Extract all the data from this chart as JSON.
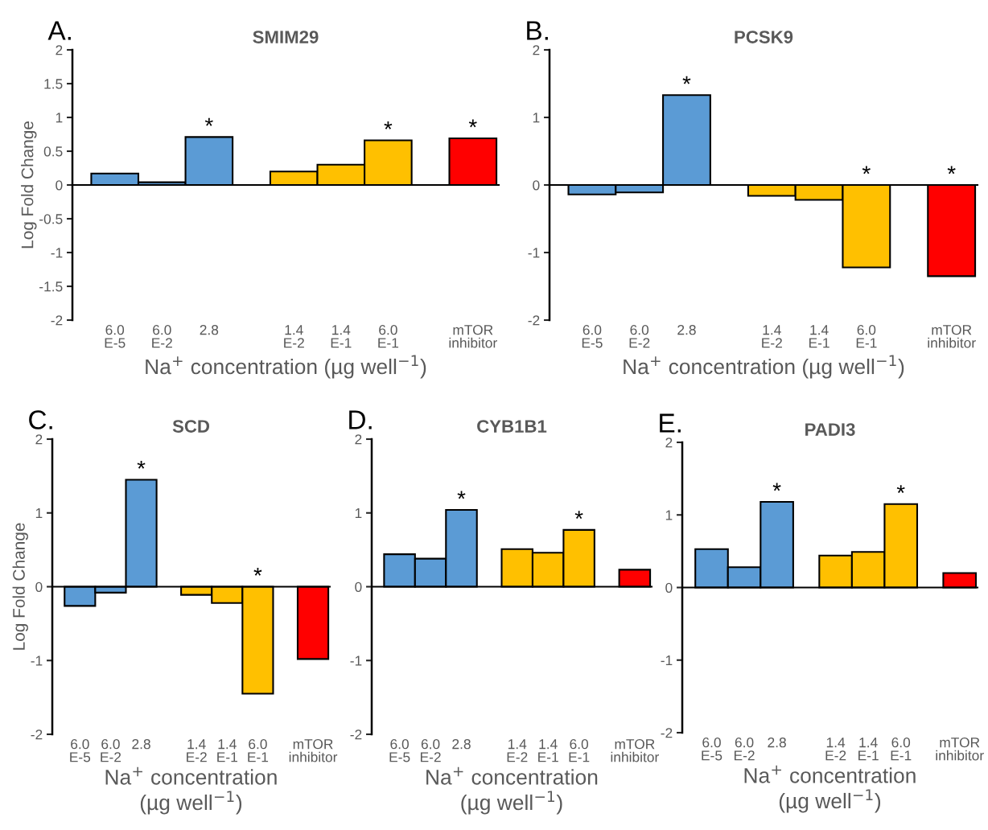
{
  "chart_data": [
    {
      "type": "bar",
      "title": "SMIM29",
      "ylabel": "Log Fold Change",
      "xlabel": "Na$^{+}$ concentration (µg well$^{−1}$)",
      "categories": [
        "6.0\nE-5",
        "6.0\nE-2",
        "2.8",
        "1.4\nE-2",
        "1.4\nE-1",
        "6.0\nE-1",
        "mTOR\ninhibitor"
      ],
      "values": [
        0.17,
        0.04,
        0.71,
        0.2,
        0.3,
        0.66,
        0.69
      ],
      "colors": [
        "#5b9bd5",
        "#5b9bd5",
        "#5b9bd5",
        "#ffc000",
        "#ffc000",
        "#ffc000",
        "#ff0000"
      ],
      "ylim": [
        -2,
        2
      ],
      "yticks": [
        -2,
        -1.5,
        -1,
        -0.5,
        0,
        0.5,
        1,
        1.5,
        2
      ],
      "legend": false,
      "annotations": [
        "A.",
        {
          "text": "*",
          "x": "2.8",
          "y": 0.71
        },
        {
          "text": "*",
          "x": "6.0\nE-1",
          "y": 0.66
        },
        {
          "text": "*",
          "x": "mTOR\ninhibitor",
          "y": 0.69
        }
      ]
    },
    {
      "type": "bar",
      "title": "PCSK9",
      "xlabel": "Na$^{+}$ concentration (µg well$^{−1}$)",
      "categories": [
        "6.0\nE-5",
        "6.0\nE-2",
        "2.8",
        "1.4\nE-2",
        "1.4\nE-1",
        "6.0\nE-1",
        "mTOR\ninhibitor"
      ],
      "values": [
        -0.14,
        -0.11,
        1.33,
        -0.16,
        -0.22,
        -1.22,
        -1.35
      ],
      "colors": [
        "#5b9bd5",
        "#5b9bd5",
        "#5b9bd5",
        "#ffc000",
        "#ffc000",
        "#ffc000",
        "#ff0000"
      ],
      "ylim": [
        -2,
        2
      ],
      "yticks": [
        -2,
        -1,
        0,
        1,
        2
      ],
      "legend": false,
      "annotations": [
        "B.",
        {
          "text": "*",
          "x": "2.8",
          "y": 1.33
        },
        {
          "text": "*",
          "x": "6.0\nE-1",
          "y": 0
        },
        {
          "text": "*",
          "x": "mTOR\ninhibitor",
          "y": 0
        }
      ]
    },
    {
      "type": "bar",
      "title": "SCD",
      "ylabel": "Log Fold Change",
      "xlabel": "Na$^{+}$ concentration\n(µg well$^{−1}$)",
      "categories": [
        "6.0\nE-5",
        "6.0\nE-2",
        "2.8",
        "1.4\nE-2",
        "1.4\nE-1",
        "6.0\nE-1",
        "mTOR\ninhibitor"
      ],
      "values": [
        -0.26,
        -0.08,
        1.45,
        -0.11,
        -0.22,
        -1.45,
        -0.98
      ],
      "colors": [
        "#5b9bd5",
        "#5b9bd5",
        "#5b9bd5",
        "#ffc000",
        "#ffc000",
        "#ffc000",
        "#ff0000"
      ],
      "ylim": [
        -2,
        2
      ],
      "yticks": [
        -2,
        -1,
        0,
        1,
        2
      ],
      "legend": false,
      "annotations": [
        "C.",
        {
          "text": "*",
          "x": "2.8",
          "y": 1.45
        },
        {
          "text": "*",
          "x": "6.0\nE-1",
          "y": 0
        }
      ]
    },
    {
      "type": "bar",
      "title": "CYB1B1",
      "xlabel": "Na$^{+}$ concentration\n(µg well$^{−1}$)",
      "categories": [
        "6.0\nE-5",
        "6.0\nE-2",
        "2.8",
        "1.4\nE-2",
        "1.4\nE-1",
        "6.0\nE-1",
        "mTOR\ninhibitor"
      ],
      "values": [
        0.44,
        0.38,
        1.04,
        0.51,
        0.46,
        0.77,
        0.23
      ],
      "colors": [
        "#5b9bd5",
        "#5b9bd5",
        "#5b9bd5",
        "#ffc000",
        "#ffc000",
        "#ffc000",
        "#ff0000"
      ],
      "ylim": [
        -2,
        2
      ],
      "yticks": [
        -2,
        -1,
        0,
        1,
        2
      ],
      "legend": false,
      "annotations": [
        "D.",
        {
          "text": "*",
          "x": "2.8",
          "y": 1.04
        },
        {
          "text": "*",
          "x": "6.0\nE-1",
          "y": 0.77
        }
      ]
    },
    {
      "type": "bar",
      "title": "PADI3",
      "xlabel": "Na$^{+}$ concentration\n(µg well$^{−1}$)",
      "categories": [
        "6.0\nE-5",
        "6.0\nE-2",
        "2.8",
        "1.4\nE-2",
        "1.4\nE-1",
        "6.0\nE-1",
        "mTOR\ninhibitor"
      ],
      "values": [
        0.53,
        0.28,
        1.18,
        0.44,
        0.49,
        1.15,
        0.2
      ],
      "colors": [
        "#5b9bd5",
        "#5b9bd5",
        "#5b9bd5",
        "#ffc000",
        "#ffc000",
        "#ffc000",
        "#ff0000"
      ],
      "ylim": [
        -2,
        2
      ],
      "yticks": [
        -2,
        -1,
        0,
        1,
        2
      ],
      "legend": false,
      "annotations": [
        "E.",
        {
          "text": "*",
          "x": "2.8",
          "y": 1.18
        },
        {
          "text": "*",
          "x": "6.0\nE-1",
          "y": 1.15
        }
      ]
    }
  ]
}
